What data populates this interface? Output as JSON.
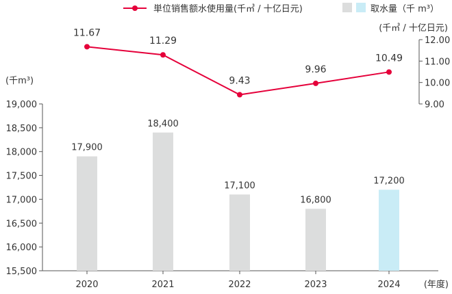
{
  "chart_data": {
    "type": "bar+line",
    "categories": [
      "2020",
      "2021",
      "2022",
      "2023",
      "2024"
    ],
    "series": [
      {
        "name": "取水量（千 m³）",
        "type": "bar",
        "axis": "left",
        "values": [
          17900,
          18400,
          17100,
          16800,
          17200
        ],
        "labels": [
          "17,900",
          "18,400",
          "17,100",
          "16,800",
          "17,200"
        ],
        "colors": [
          "#dcdddd",
          "#dcdddd",
          "#dcdddd",
          "#dcdddd",
          "#c9ecf6"
        ]
      },
      {
        "name": "単位销售额水使用量(千㎥ / 十亿日元)",
        "type": "line",
        "axis": "right",
        "values": [
          11.67,
          11.29,
          9.43,
          9.96,
          10.49
        ],
        "labels": [
          "11.67",
          "11.29",
          "9.43",
          "9.96",
          "10.49"
        ],
        "color": "#e5003a"
      }
    ],
    "left_axis": {
      "label": "(千m³)",
      "range": [
        15500,
        19000
      ],
      "ticks": [
        "15,500",
        "16,000",
        "16,500",
        "17,000",
        "17,500",
        "18,000",
        "18,500",
        "19,000"
      ]
    },
    "right_axis": {
      "label": "(千㎥ / 十亿日元)",
      "range": [
        9,
        12
      ],
      "ticks": [
        "9.00",
        "10.00",
        "11.00",
        "12.00"
      ]
    },
    "xlabel": "(年度)",
    "legend": {
      "line_label": "単位销售额水使用量(千㎥ / 十亿日元)",
      "bar_label": "取水量（千 m³）",
      "placement": "top-right"
    }
  }
}
